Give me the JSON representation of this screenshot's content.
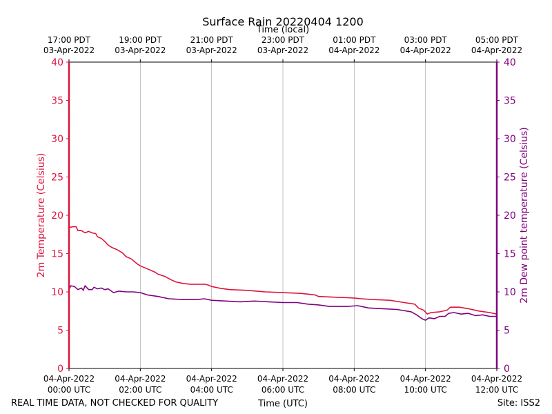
{
  "chart_data": {
    "type": "line",
    "title": "Surface Rain 20220404 1200",
    "top_xlabel": "Time (local)",
    "xlabel": "Time (UTC)",
    "ylabel_left": "2m Temperature (Celsius)",
    "ylabel_right": "2m Dew point temperature (Celsius)",
    "footer_left": "REAL TIME DATA, NOT CHECKED FOR QUALITY",
    "footer_right": "Site: ISS2",
    "xlim_hours": [
      0,
      12
    ],
    "ylim_left": [
      0,
      40
    ],
    "ylim_right": [
      0,
      40
    ],
    "y_ticks": [
      0,
      5,
      10,
      15,
      20,
      25,
      30,
      35,
      40
    ],
    "grid": "vertical",
    "bottom_ticks": [
      {
        "hour": 0,
        "line1": "04-Apr-2022",
        "line2": "00:00 UTC"
      },
      {
        "hour": 2,
        "line1": "04-Apr-2022",
        "line2": "02:00 UTC"
      },
      {
        "hour": 4,
        "line1": "04-Apr-2022",
        "line2": "04:00 UTC"
      },
      {
        "hour": 6,
        "line1": "04-Apr-2022",
        "line2": "06:00 UTC"
      },
      {
        "hour": 8,
        "line1": "04-Apr-2022",
        "line2": "08:00 UTC"
      },
      {
        "hour": 10,
        "line1": "04-Apr-2022",
        "line2": "10:00 UTC"
      },
      {
        "hour": 12,
        "line1": "04-Apr-2022",
        "line2": "12:00 UTC"
      }
    ],
    "top_ticks": [
      {
        "hour": 0,
        "line1": "17:00 PDT",
        "line2": "03-Apr-2022"
      },
      {
        "hour": 2,
        "line1": "19:00 PDT",
        "line2": "03-Apr-2022"
      },
      {
        "hour": 4,
        "line1": "21:00 PDT",
        "line2": "03-Apr-2022"
      },
      {
        "hour": 6,
        "line1": "23:00 PDT",
        "line2": "03-Apr-2022"
      },
      {
        "hour": 8,
        "line1": "01:00 PDT",
        "line2": "04-Apr-2022"
      },
      {
        "hour": 10,
        "line1": "03:00 PDT",
        "line2": "04-Apr-2022"
      },
      {
        "hour": 12,
        "line1": "05:00 PDT",
        "line2": "04-Apr-2022"
      }
    ],
    "series": [
      {
        "name": "2m Temperature",
        "axis": "left",
        "color": "#dc143c",
        "points": [
          [
            0.0,
            18.4
          ],
          [
            0.1,
            18.5
          ],
          [
            0.2,
            18.5
          ],
          [
            0.25,
            18.0
          ],
          [
            0.35,
            18.0
          ],
          [
            0.45,
            17.7
          ],
          [
            0.55,
            17.9
          ],
          [
            0.65,
            17.7
          ],
          [
            0.75,
            17.6
          ],
          [
            0.8,
            17.2
          ],
          [
            0.9,
            17.0
          ],
          [
            1.0,
            16.6
          ],
          [
            1.1,
            16.1
          ],
          [
            1.2,
            15.8
          ],
          [
            1.35,
            15.5
          ],
          [
            1.5,
            15.1
          ],
          [
            1.6,
            14.6
          ],
          [
            1.75,
            14.3
          ],
          [
            1.9,
            13.7
          ],
          [
            2.0,
            13.4
          ],
          [
            2.2,
            13.0
          ],
          [
            2.4,
            12.6
          ],
          [
            2.5,
            12.3
          ],
          [
            2.7,
            12.0
          ],
          [
            2.85,
            11.6
          ],
          [
            3.0,
            11.3
          ],
          [
            3.2,
            11.1
          ],
          [
            3.4,
            11.0
          ],
          [
            3.8,
            11.0
          ],
          [
            3.9,
            10.9
          ],
          [
            4.0,
            10.7
          ],
          [
            4.2,
            10.5
          ],
          [
            4.5,
            10.3
          ],
          [
            5.0,
            10.2
          ],
          [
            5.5,
            10.0
          ],
          [
            6.0,
            9.9
          ],
          [
            6.5,
            9.8
          ],
          [
            6.9,
            9.6
          ],
          [
            7.0,
            9.4
          ],
          [
            7.5,
            9.3
          ],
          [
            8.0,
            9.2
          ],
          [
            8.2,
            9.1
          ],
          [
            8.5,
            9.0
          ],
          [
            9.0,
            8.9
          ],
          [
            9.4,
            8.6
          ],
          [
            9.7,
            8.4
          ],
          [
            9.8,
            7.9
          ],
          [
            9.95,
            7.6
          ],
          [
            10.05,
            7.1
          ],
          [
            10.15,
            7.3
          ],
          [
            10.4,
            7.4
          ],
          [
            10.6,
            7.6
          ],
          [
            10.7,
            8.0
          ],
          [
            10.95,
            8.0
          ],
          [
            11.2,
            7.8
          ],
          [
            11.5,
            7.5
          ],
          [
            11.8,
            7.3
          ],
          [
            12.0,
            7.1
          ]
        ]
      },
      {
        "name": "2m Dew point temperature",
        "axis": "right",
        "color": "#800080",
        "points": [
          [
            0.0,
            10.3
          ],
          [
            0.05,
            10.8
          ],
          [
            0.15,
            10.7
          ],
          [
            0.25,
            10.3
          ],
          [
            0.35,
            10.5
          ],
          [
            0.4,
            10.2
          ],
          [
            0.45,
            10.8
          ],
          [
            0.55,
            10.3
          ],
          [
            0.65,
            10.3
          ],
          [
            0.7,
            10.6
          ],
          [
            0.8,
            10.4
          ],
          [
            0.9,
            10.5
          ],
          [
            1.0,
            10.3
          ],
          [
            1.1,
            10.4
          ],
          [
            1.25,
            9.9
          ],
          [
            1.4,
            10.1
          ],
          [
            1.6,
            10.0
          ],
          [
            1.8,
            10.0
          ],
          [
            2.0,
            9.9
          ],
          [
            2.2,
            9.6
          ],
          [
            2.5,
            9.4
          ],
          [
            2.8,
            9.1
          ],
          [
            3.2,
            9.0
          ],
          [
            3.6,
            9.0
          ],
          [
            3.8,
            9.1
          ],
          [
            4.0,
            8.9
          ],
          [
            4.4,
            8.8
          ],
          [
            4.8,
            8.7
          ],
          [
            5.2,
            8.8
          ],
          [
            5.6,
            8.7
          ],
          [
            6.0,
            8.6
          ],
          [
            6.4,
            8.6
          ],
          [
            6.7,
            8.4
          ],
          [
            7.0,
            8.3
          ],
          [
            7.3,
            8.1
          ],
          [
            7.8,
            8.1
          ],
          [
            8.1,
            8.2
          ],
          [
            8.4,
            7.9
          ],
          [
            8.8,
            7.8
          ],
          [
            9.2,
            7.7
          ],
          [
            9.6,
            7.4
          ],
          [
            9.75,
            7.0
          ],
          [
            9.9,
            6.5
          ],
          [
            10.0,
            6.3
          ],
          [
            10.1,
            6.6
          ],
          [
            10.25,
            6.5
          ],
          [
            10.4,
            6.8
          ],
          [
            10.55,
            6.8
          ],
          [
            10.65,
            7.2
          ],
          [
            10.8,
            7.3
          ],
          [
            11.0,
            7.1
          ],
          [
            11.2,
            7.2
          ],
          [
            11.4,
            6.9
          ],
          [
            11.6,
            7.0
          ],
          [
            11.8,
            6.8
          ],
          [
            12.0,
            6.8
          ]
        ]
      }
    ]
  }
}
